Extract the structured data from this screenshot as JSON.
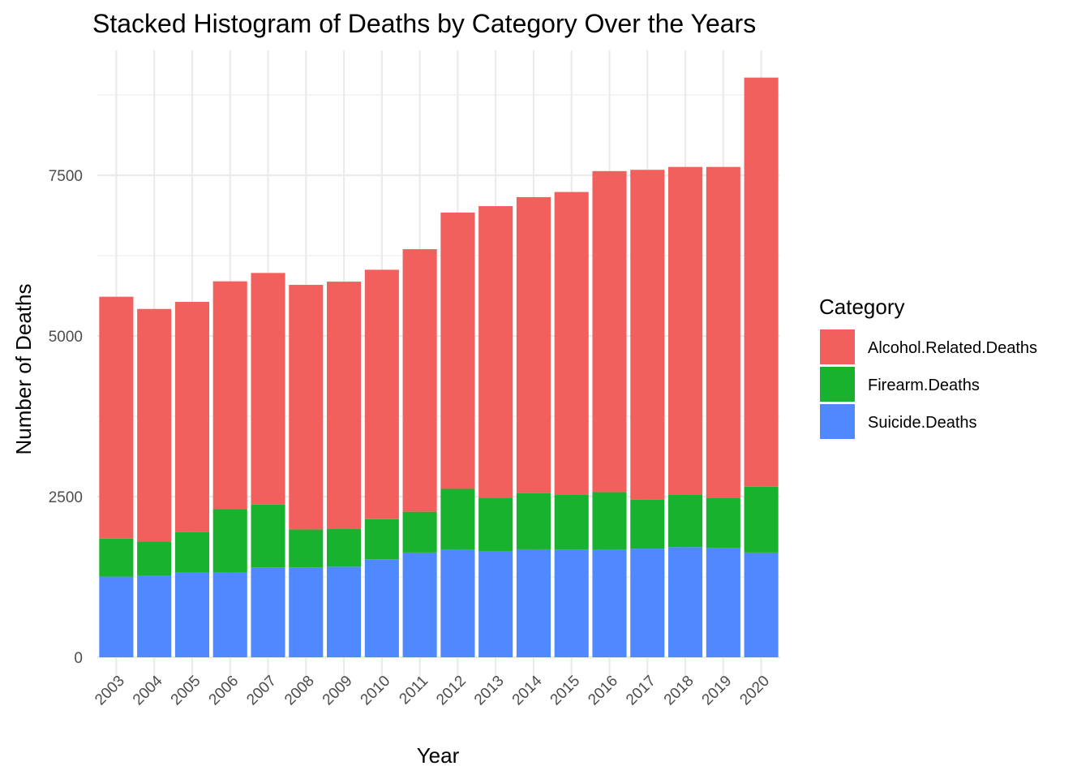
{
  "chart_data": {
    "type": "bar",
    "stacked": true,
    "title": "Stacked Histogram of Deaths by Category Over the Years",
    "xlabel": "Year",
    "ylabel": "Number of Deaths",
    "categories": [
      "2003",
      "2004",
      "2005",
      "2006",
      "2007",
      "2008",
      "2009",
      "2010",
      "2011",
      "2012",
      "2013",
      "2014",
      "2015",
      "2016",
      "2017",
      "2018",
      "2019",
      "2020"
    ],
    "series": [
      {
        "name": "Suicide.Deaths",
        "color": "#4f88ff",
        "values": [
          1255,
          1265,
          1315,
          1315,
          1400,
          1400,
          1410,
          1525,
          1630,
          1670,
          1645,
          1680,
          1675,
          1670,
          1690,
          1715,
          1700,
          1630
        ]
      },
      {
        "name": "Firearm.Deaths",
        "color": "#19b22f",
        "values": [
          590,
          535,
          630,
          990,
          975,
          590,
          590,
          625,
          635,
          950,
          840,
          875,
          860,
          900,
          760,
          820,
          780,
          1025
        ]
      },
      {
        "name": "Alcohol.Related.Deaths",
        "color": "#f2605e",
        "values": [
          3765,
          3620,
          3585,
          3545,
          3605,
          3805,
          3845,
          3880,
          4085,
          4300,
          4535,
          4605,
          4705,
          4995,
          5135,
          5095,
          5150,
          6365
        ]
      }
    ],
    "legend": {
      "title": "Category",
      "position": "right",
      "order": [
        "Alcohol.Related.Deaths",
        "Firearm.Deaths",
        "Suicide.Deaths"
      ]
    },
    "ylim": [
      0,
      9000
    ],
    "yticks": [
      0,
      2500,
      5000,
      7500
    ],
    "grid": true
  }
}
